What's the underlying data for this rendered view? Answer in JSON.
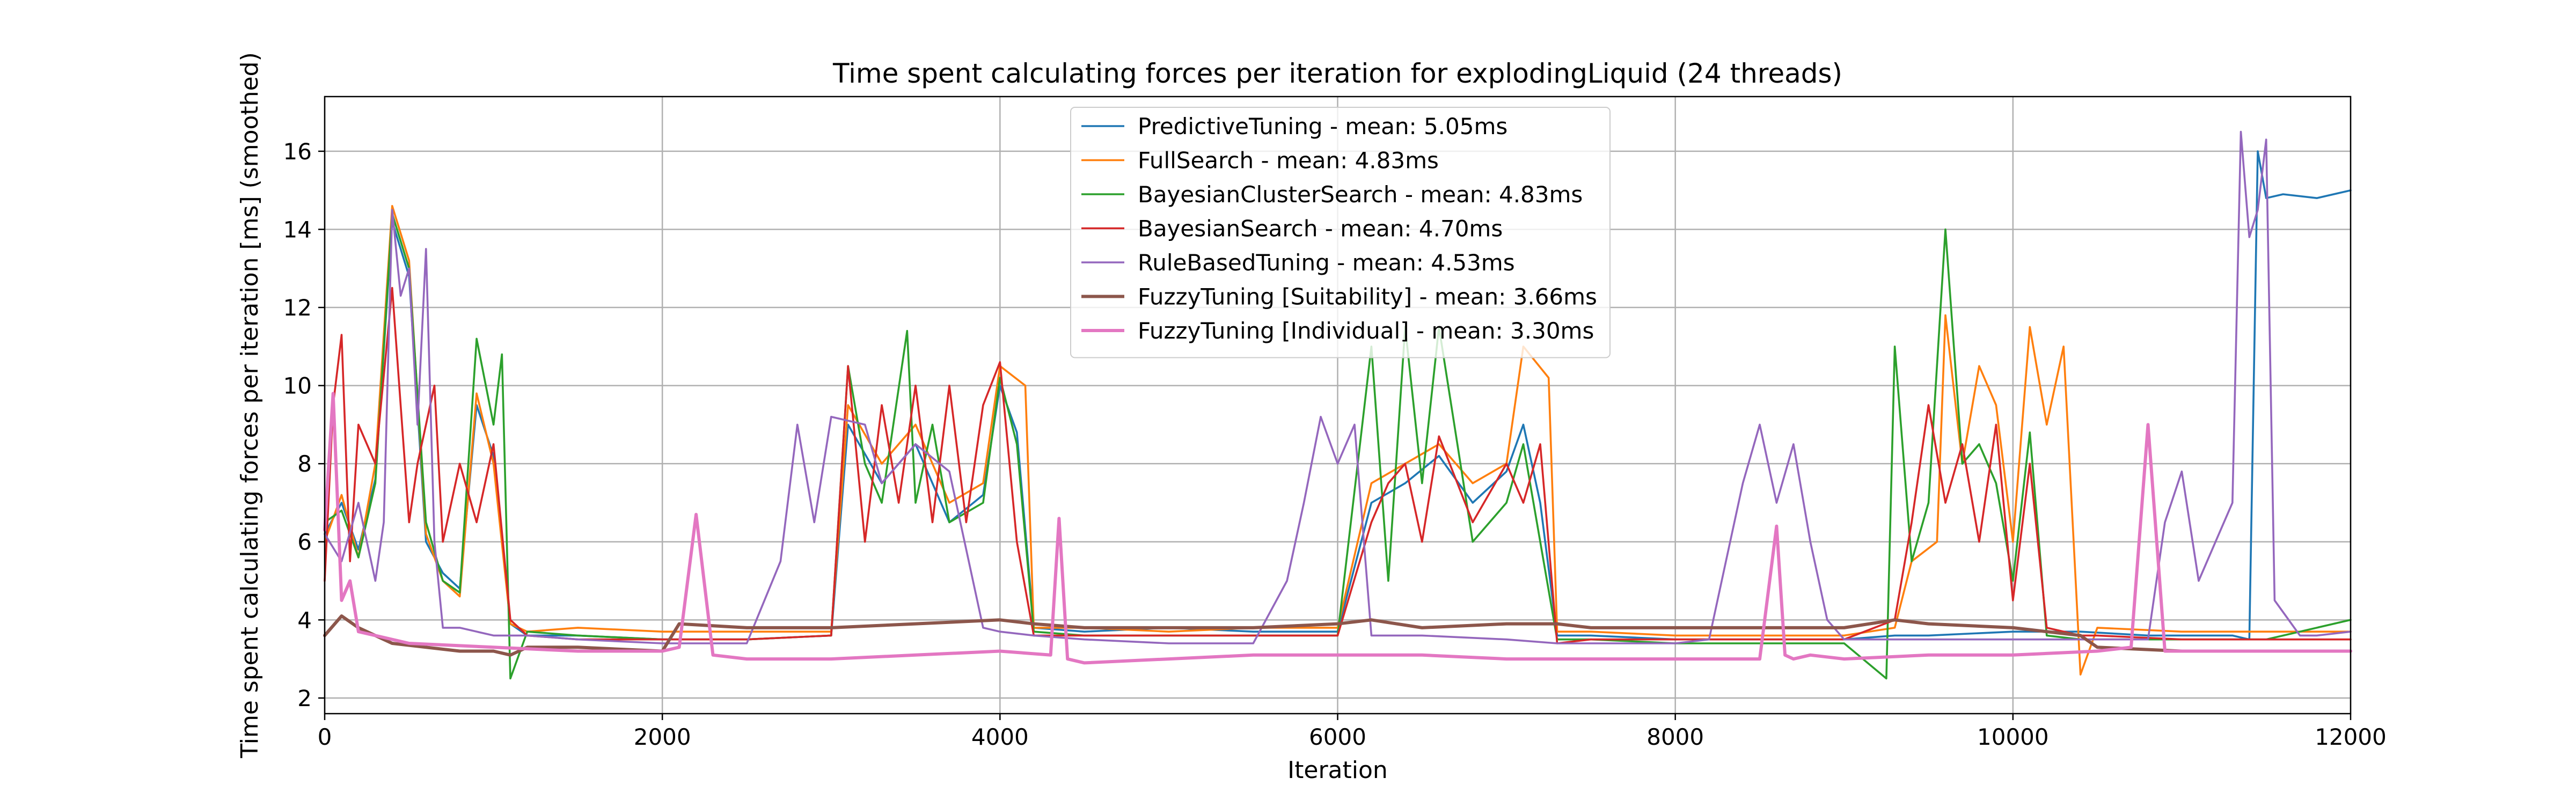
{
  "chart_data": {
    "type": "line",
    "title": "Time spent calculating forces per iteration for explodingLiquid (24 threads)",
    "xlabel": "Iteration",
    "ylabel": "Time spent calculating forces per iteration [ms] (smoothed)",
    "xlim": [
      0,
      12000
    ],
    "ylim": [
      1.6,
      17.4
    ],
    "xticks": [
      0,
      2000,
      4000,
      6000,
      8000,
      10000,
      12000
    ],
    "yticks": [
      2,
      4,
      6,
      8,
      10,
      12,
      14,
      16
    ],
    "grid": true,
    "legend_position": "top-center",
    "series": [
      {
        "name": "PredictiveTuning - mean: 5.05ms",
        "color": "#1f77b4",
        "x": [
          0,
          100,
          200,
          300,
          400,
          500,
          600,
          700,
          800,
          900,
          1000,
          1100,
          1200,
          1500,
          2000,
          2500,
          3000,
          3100,
          3300,
          3500,
          3700,
          3900,
          4000,
          4100,
          4200,
          4500,
          5000,
          5500,
          6000,
          6200,
          6400,
          6600,
          6800,
          7000,
          7100,
          7200,
          7300,
          7500,
          8000,
          8500,
          9000,
          9300,
          9500,
          10000,
          10400,
          10800,
          11000,
          11300,
          11400,
          11450,
          11500,
          11600,
          11800,
          12000
        ],
        "y": [
          6.2,
          7.0,
          5.8,
          7.6,
          14.2,
          12.8,
          6.0,
          5.2,
          4.8,
          9.5,
          8.2,
          3.9,
          3.6,
          3.6,
          3.5,
          3.5,
          3.6,
          9.0,
          7.5,
          8.5,
          6.5,
          7.2,
          10.0,
          8.8,
          3.8,
          3.7,
          3.8,
          3.7,
          3.7,
          7.0,
          7.5,
          8.2,
          7.0,
          7.8,
          9.0,
          7.0,
          3.6,
          3.6,
          3.5,
          3.5,
          3.5,
          3.6,
          3.6,
          3.7,
          3.7,
          3.6,
          3.6,
          3.6,
          3.5,
          16.0,
          14.8,
          14.9,
          14.8,
          15.0
        ]
      },
      {
        "name": "FullSearch - mean: 4.83ms",
        "color": "#ff7f0e",
        "x": [
          0,
          100,
          200,
          300,
          400,
          500,
          600,
          700,
          800,
          900,
          1000,
          1100,
          1200,
          1500,
          2000,
          2500,
          3000,
          3100,
          3300,
          3500,
          3700,
          3900,
          4000,
          4150,
          4200,
          4500,
          5000,
          5500,
          6000,
          6200,
          6400,
          6600,
          6800,
          7000,
          7100,
          7250,
          7300,
          7500,
          8000,
          8500,
          9000,
          9300,
          9400,
          9550,
          9600,
          9700,
          9800,
          9900,
          10000,
          10100,
          10200,
          10300,
          10400,
          10500,
          11000,
          11500,
          12000
        ],
        "y": [
          6.0,
          7.2,
          5.6,
          8.0,
          14.6,
          13.2,
          6.2,
          5.0,
          4.6,
          9.8,
          8.0,
          3.9,
          3.7,
          3.8,
          3.7,
          3.7,
          3.7,
          9.5,
          8.0,
          9.0,
          7.0,
          7.5,
          10.5,
          10.0,
          3.8,
          3.8,
          3.7,
          3.8,
          3.8,
          7.5,
          8.0,
          8.5,
          7.5,
          8.0,
          11.0,
          10.2,
          3.7,
          3.7,
          3.6,
          3.6,
          3.6,
          3.8,
          5.5,
          6.0,
          11.8,
          8.0,
          10.5,
          9.5,
          6.0,
          11.5,
          9.0,
          11.0,
          2.6,
          3.8,
          3.7,
          3.7,
          3.7
        ]
      },
      {
        "name": "BayesianClusterSearch - mean: 4.83ms",
        "color": "#2ca02c",
        "x": [
          0,
          100,
          200,
          300,
          400,
          500,
          600,
          700,
          800,
          900,
          1000,
          1050,
          1100,
          1200,
          1500,
          2000,
          2500,
          3000,
          3100,
          3200,
          3300,
          3450,
          3500,
          3600,
          3700,
          3900,
          4000,
          4100,
          4200,
          4500,
          5000,
          5500,
          6000,
          6200,
          6300,
          6400,
          6500,
          6600,
          6800,
          7000,
          7100,
          7200,
          7300,
          7500,
          8000,
          8500,
          9000,
          9250,
          9300,
          9400,
          9500,
          9600,
          9700,
          9800,
          9900,
          10000,
          10100,
          10200,
          10400,
          10500,
          11000,
          11500,
          12000
        ],
        "y": [
          6.5,
          6.8,
          5.6,
          7.5,
          14.4,
          13.0,
          6.5,
          5.0,
          4.7,
          11.2,
          9.0,
          10.8,
          2.5,
          3.7,
          3.6,
          3.5,
          3.5,
          3.6,
          10.5,
          8.0,
          7.0,
          11.4,
          7.0,
          9.0,
          6.5,
          7.0,
          10.2,
          8.5,
          3.7,
          3.6,
          3.6,
          3.6,
          3.6,
          11.0,
          5.0,
          11.5,
          7.5,
          11.5,
          6.0,
          7.0,
          8.5,
          6.0,
          3.5,
          3.5,
          3.4,
          3.4,
          3.4,
          2.5,
          11.0,
          5.5,
          7.0,
          14.0,
          8.0,
          8.5,
          7.5,
          5.0,
          8.8,
          3.6,
          3.5,
          3.5,
          3.5,
          3.5,
          4.0
        ]
      },
      {
        "name": "BayesianSearch - mean: 4.70ms",
        "color": "#d62728",
        "x": [
          0,
          50,
          100,
          150,
          200,
          300,
          400,
          500,
          550,
          600,
          650,
          700,
          800,
          900,
          1000,
          1100,
          1200,
          1500,
          2000,
          2500,
          3000,
          3100,
          3200,
          3300,
          3400,
          3500,
          3600,
          3700,
          3800,
          3900,
          4000,
          4100,
          4200,
          4500,
          5000,
          5500,
          6000,
          6200,
          6300,
          6400,
          6500,
          6600,
          6800,
          7000,
          7100,
          7200,
          7300,
          7500,
          8000,
          8500,
          9000,
          9300,
          9400,
          9500,
          9600,
          9700,
          9800,
          9900,
          10000,
          10100,
          10200,
          10400,
          10500,
          11000,
          11500,
          12000
        ],
        "y": [
          5.0,
          9.5,
          11.3,
          5.5,
          9.0,
          8.0,
          12.5,
          6.5,
          8.0,
          9.0,
          10.0,
          6.0,
          8.0,
          6.5,
          8.5,
          4.0,
          3.6,
          3.5,
          3.5,
          3.5,
          3.6,
          10.5,
          6.0,
          9.5,
          7.0,
          10.0,
          6.5,
          10.0,
          6.5,
          9.5,
          10.6,
          6.0,
          3.6,
          3.6,
          3.6,
          3.6,
          3.6,
          6.5,
          7.5,
          8.0,
          6.0,
          8.7,
          6.5,
          8.0,
          7.0,
          8.5,
          3.4,
          3.5,
          3.5,
          3.5,
          3.5,
          4.0,
          6.5,
          9.5,
          7.0,
          8.5,
          6.0,
          9.0,
          4.5,
          8.0,
          3.8,
          3.6,
          3.6,
          3.5,
          3.5,
          3.5
        ]
      },
      {
        "name": "RuleBasedTuning - mean: 4.53ms",
        "color": "#9467bd",
        "x": [
          0,
          100,
          200,
          300,
          350,
          400,
          450,
          500,
          550,
          600,
          650,
          700,
          800,
          1000,
          1200,
          1500,
          2000,
          2500,
          2700,
          2800,
          2900,
          3000,
          3200,
          3300,
          3500,
          3700,
          3900,
          4000,
          4200,
          4500,
          5000,
          5500,
          5700,
          5800,
          5900,
          6000,
          6100,
          6200,
          6500,
          7000,
          7300,
          7500,
          8000,
          8200,
          8300,
          8400,
          8500,
          8600,
          8700,
          8800,
          8900,
          9000,
          9300,
          9500,
          10000,
          10500,
          10800,
          10900,
          11000,
          11100,
          11200,
          11300,
          11350,
          11400,
          11450,
          11500,
          11550,
          11600,
          11700,
          11800,
          12000
        ],
        "y": [
          6.2,
          5.5,
          7.0,
          5.0,
          6.5,
          14.5,
          12.3,
          13.0,
          9.0,
          13.5,
          6.0,
          3.8,
          3.8,
          3.6,
          3.6,
          3.5,
          3.4,
          3.4,
          5.5,
          9.0,
          6.5,
          9.2,
          9.0,
          7.5,
          8.5,
          7.8,
          3.8,
          3.7,
          3.6,
          3.5,
          3.4,
          3.4,
          5.0,
          7.0,
          9.2,
          8.0,
          9.0,
          3.6,
          3.6,
          3.5,
          3.4,
          3.4,
          3.4,
          3.5,
          5.5,
          7.5,
          9.0,
          7.0,
          8.5,
          6.0,
          4.0,
          3.5,
          3.5,
          3.5,
          3.5,
          3.5,
          3.5,
          6.5,
          7.8,
          5.0,
          6.0,
          7.0,
          16.5,
          13.8,
          14.5,
          16.3,
          4.5,
          4.2,
          3.6,
          3.6,
          3.7
        ]
      },
      {
        "name": "FuzzyTuning [Suitability] - mean: 3.66ms",
        "color": "#8c564b",
        "x": [
          0,
          100,
          200,
          400,
          600,
          800,
          1000,
          1100,
          1200,
          1500,
          2000,
          2100,
          2500,
          3000,
          3500,
          4000,
          4200,
          4500,
          5000,
          5500,
          6000,
          6200,
          6500,
          7000,
          7300,
          7500,
          8000,
          8300,
          8500,
          9000,
          9300,
          9500,
          10000,
          10400,
          10500,
          11000,
          11500,
          12000
        ],
        "y": [
          3.6,
          4.1,
          3.8,
          3.4,
          3.3,
          3.2,
          3.2,
          3.1,
          3.3,
          3.3,
          3.2,
          3.9,
          3.8,
          3.8,
          3.9,
          4.0,
          3.9,
          3.8,
          3.8,
          3.8,
          3.9,
          4.0,
          3.8,
          3.9,
          3.9,
          3.8,
          3.8,
          3.8,
          3.8,
          3.8,
          4.0,
          3.9,
          3.8,
          3.6,
          3.3,
          3.2,
          3.2,
          3.2
        ]
      },
      {
        "name": "FuzzyTuning [Individual] - mean: 3.30ms",
        "color": "#e377c2",
        "x": [
          0,
          50,
          100,
          150,
          200,
          300,
          500,
          1000,
          1500,
          2000,
          2100,
          2200,
          2300,
          2500,
          3000,
          3500,
          4000,
          4300,
          4350,
          4400,
          4500,
          5000,
          5500,
          6000,
          6500,
          7000,
          7500,
          8000,
          8500,
          8600,
          8650,
          8700,
          8800,
          9000,
          9500,
          10000,
          10500,
          10700,
          10800,
          10900,
          11000,
          11500,
          12000
        ],
        "y": [
          6.3,
          9.8,
          4.5,
          5.0,
          3.7,
          3.6,
          3.4,
          3.3,
          3.2,
          3.2,
          3.3,
          6.7,
          3.1,
          3.0,
          3.0,
          3.1,
          3.2,
          3.1,
          6.6,
          3.0,
          2.9,
          3.0,
          3.1,
          3.1,
          3.1,
          3.0,
          3.0,
          3.0,
          3.0,
          6.4,
          3.1,
          3.0,
          3.1,
          3.0,
          3.1,
          3.1,
          3.2,
          3.3,
          9.0,
          3.2,
          3.2,
          3.2,
          3.2
        ]
      }
    ]
  }
}
